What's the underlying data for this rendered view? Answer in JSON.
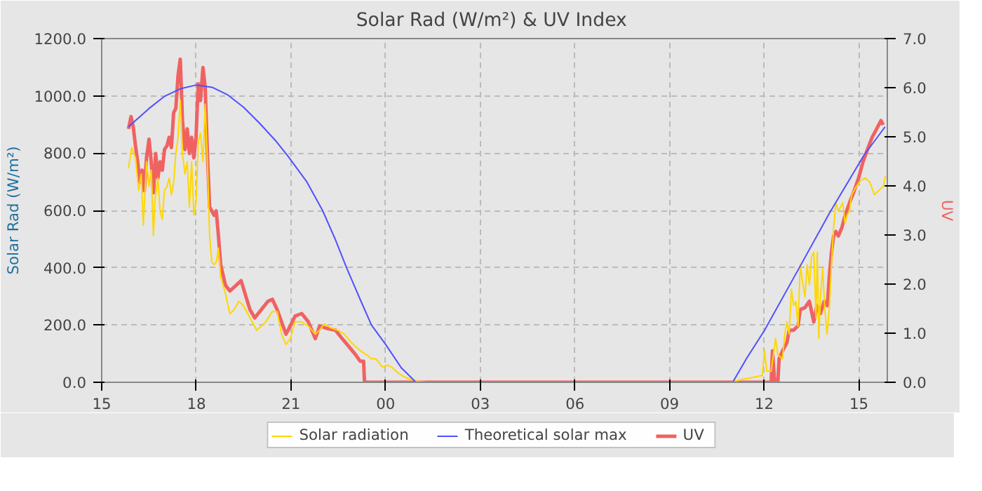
{
  "chart_data": {
    "type": "line",
    "title": "Solar Rad (W/m²) &  UV Index",
    "ylabel": "Solar Rad (W/m²)",
    "y2label": "UV",
    "xlim": [
      15,
      39.9
    ],
    "xticks": [
      {
        "value": 15,
        "label": "15"
      },
      {
        "value": 18,
        "label": "18"
      },
      {
        "value": 21,
        "label": "21"
      },
      {
        "value": 24,
        "label": "00"
      },
      {
        "value": 27,
        "label": "03"
      },
      {
        "value": 30,
        "label": "06"
      },
      {
        "value": 33,
        "label": "09"
      },
      {
        "value": 36,
        "label": "12"
      },
      {
        "value": 39,
        "label": "15"
      }
    ],
    "ylim": [
      0,
      1200
    ],
    "yticks": [
      {
        "value": 0,
        "label": "0.0"
      },
      {
        "value": 200,
        "label": "200.0"
      },
      {
        "value": 400,
        "label": "400.0"
      },
      {
        "value": 600,
        "label": "600.0"
      },
      {
        "value": 800,
        "label": "800.0"
      },
      {
        "value": 1000,
        "label": "1000.0"
      },
      {
        "value": 1200,
        "label": "1200.0"
      }
    ],
    "y2lim": [
      0,
      7
    ],
    "y2ticks": [
      {
        "value": 0,
        "label": "0.0"
      },
      {
        "value": 1,
        "label": "1.0"
      },
      {
        "value": 2,
        "label": "2.0"
      },
      {
        "value": 3,
        "label": "3.0"
      },
      {
        "value": 4,
        "label": "4.0"
      },
      {
        "value": 5,
        "label": "5.0"
      },
      {
        "value": 6,
        "label": "6.0"
      },
      {
        "value": 7,
        "label": "7.0"
      }
    ],
    "grid": true,
    "legend": "bottom",
    "marker": "none",
    "line_style": "solid",
    "series": [
      {
        "name": "Solar radiation",
        "color": "#ffd700",
        "x": [
          15.85,
          15.95,
          16.07,
          16.17,
          16.25,
          16.32,
          16.42,
          16.5,
          16.57,
          16.64,
          16.68,
          16.78,
          16.85,
          16.92,
          16.99,
          17.07,
          17.14,
          17.21,
          17.28,
          17.35,
          17.42,
          17.49,
          17.56,
          17.64,
          17.71,
          17.78,
          17.85,
          17.92,
          17.99,
          18.06,
          18.13,
          18.21,
          18.28,
          18.35,
          18.42,
          18.49,
          18.56,
          18.63,
          18.7,
          18.77,
          18.92,
          19.06,
          19.2,
          19.34,
          19.49,
          19.63,
          19.77,
          19.91,
          20.06,
          20.2,
          20.41,
          20.56,
          20.7,
          20.84,
          20.98,
          21.13,
          21.34,
          21.55,
          21.77,
          21.91,
          22.05,
          22.26,
          22.48,
          22.69,
          22.91,
          23.19,
          23.4,
          23.55,
          23.69,
          23.9,
          24.05,
          24.19,
          24.4,
          24.62,
          25.0,
          25.3,
          34.94,
          35.3,
          35.94,
          36.01,
          36.08,
          36.22,
          36.36,
          36.43,
          36.58,
          36.65,
          36.72,
          36.79,
          36.86,
          36.93,
          37.0,
          37.07,
          37.14,
          37.21,
          37.29,
          37.36,
          37.43,
          37.5,
          37.57,
          37.64,
          37.68,
          37.73,
          37.78,
          37.85,
          37.92,
          37.99,
          38.06,
          38.13,
          38.2,
          38.27,
          38.35,
          38.42,
          38.49,
          38.56,
          38.63,
          38.7,
          38.77,
          38.92,
          39.06,
          39.2,
          39.35,
          39.49,
          39.63,
          39.77,
          39.84
        ],
        "values": [
          748,
          820,
          784,
          670,
          727,
          548,
          770,
          684,
          741,
          512,
          627,
          713,
          598,
          569,
          670,
          684,
          713,
          655,
          698,
          799,
          856,
          985,
          799,
          727,
          770,
          612,
          770,
          584,
          627,
          842,
          870,
          770,
          971,
          770,
          512,
          419,
          411,
          419,
          469,
          368,
          311,
          239,
          254,
          282,
          268,
          239,
          211,
          182,
          196,
          211,
          247,
          247,
          168,
          132,
          153,
          211,
          211,
          196,
          168,
          182,
          204,
          190,
          182,
          168,
          139,
          111,
          96,
          82,
          82,
          53,
          60,
          53,
          32,
          17,
          3,
          0,
          0,
          10,
          24,
          110,
          39,
          39,
          153,
          96,
          82,
          168,
          211,
          168,
          325,
          268,
          282,
          196,
          411,
          354,
          297,
          411,
          340,
          440,
          454,
          225,
          454,
          153,
          297,
          397,
          254,
          168,
          254,
          411,
          541,
          627,
          598,
          612,
          627,
          555,
          584,
          598,
          655,
          684,
          705,
          713,
          698,
          655,
          670,
          684,
          720
        ]
      },
      {
        "name": "Theoretical solar max",
        "color": "#5050ff",
        "x": [
          15.85,
          16.5,
          17,
          17.5,
          18,
          18.5,
          19,
          19.5,
          20,
          20.5,
          20.9,
          21.5,
          22,
          22.4,
          22.76,
          23.15,
          23.55,
          24,
          24.5,
          24.96,
          35.0,
          35.45,
          36.01,
          37.08,
          38.08,
          39.15,
          39.83
        ],
        "values": [
          892,
          956,
          999,
          1025,
          1038,
          1030,
          1003,
          960,
          905,
          845,
          790,
          700,
          600,
          500,
          400,
          300,
          200,
          132,
          50,
          0,
          0,
          85,
          182,
          394,
          593,
          791,
          892
        ]
      },
      {
        "name": "UV",
        "color": "#f06262",
        "axis": "y2",
        "x": [
          15.85,
          15.93,
          16.0,
          16.07,
          16.14,
          16.21,
          16.28,
          16.35,
          16.42,
          16.5,
          16.57,
          16.64,
          16.71,
          16.78,
          16.85,
          16.92,
          16.99,
          17.07,
          17.14,
          17.21,
          17.28,
          17.35,
          17.42,
          17.49,
          17.56,
          17.64,
          17.71,
          17.78,
          17.85,
          17.92,
          17.99,
          18.06,
          18.13,
          18.21,
          18.28,
          18.35,
          18.42,
          18.49,
          18.56,
          18.63,
          18.7,
          18.77,
          18.92,
          19.06,
          19.27,
          19.42,
          19.56,
          19.7,
          19.85,
          20.06,
          20.27,
          20.41,
          20.56,
          20.7,
          20.84,
          20.98,
          21.13,
          21.34,
          21.55,
          21.77,
          21.91,
          22.12,
          22.41,
          22.62,
          22.83,
          23.05,
          23.19,
          23.3,
          23.33,
          36.22,
          36.26,
          36.33,
          36.43,
          36.47,
          36.58,
          36.72,
          36.79,
          36.93,
          37.07,
          37.14,
          37.29,
          37.43,
          37.57,
          37.67,
          37.78,
          37.9,
          38.0,
          38.06,
          38.13,
          38.2,
          38.27,
          38.35,
          38.46,
          38.56,
          38.7,
          38.85,
          38.99,
          39.13,
          39.27,
          39.42,
          39.56,
          39.7,
          39.77
        ],
        "values": [
          5.16,
          5.41,
          5.2,
          4.82,
          4.49,
          4.07,
          4.32,
          3.9,
          4.57,
          4.95,
          4.49,
          3.86,
          4.66,
          4.16,
          4.49,
          4.32,
          4.74,
          4.82,
          4.99,
          4.78,
          5.49,
          5.58,
          6.25,
          6.58,
          5.33,
          4.74,
          5.16,
          4.66,
          4.99,
          4.57,
          4.99,
          6.08,
          5.74,
          6.41,
          6.0,
          4.66,
          3.57,
          3.49,
          3.4,
          3.49,
          2.98,
          2.4,
          1.98,
          1.86,
          1.98,
          2.07,
          1.77,
          1.48,
          1.31,
          1.48,
          1.65,
          1.69,
          1.48,
          1.23,
          0.98,
          1.15,
          1.35,
          1.4,
          1.23,
          0.89,
          1.15,
          1.1,
          1.06,
          0.89,
          0.73,
          0.56,
          0.43,
          0.43,
          0,
          0,
          0.64,
          0,
          0,
          0.48,
          0.64,
          0.81,
          1.06,
          1.06,
          1.15,
          1.48,
          1.52,
          1.65,
          1.23,
          1.56,
          1.4,
          1.65,
          1.56,
          2.15,
          2.65,
          2.98,
          3.07,
          2.98,
          3.15,
          3.4,
          3.65,
          3.9,
          4.16,
          4.49,
          4.74,
          4.99,
          5.16,
          5.33,
          5.24
        ]
      }
    ]
  }
}
